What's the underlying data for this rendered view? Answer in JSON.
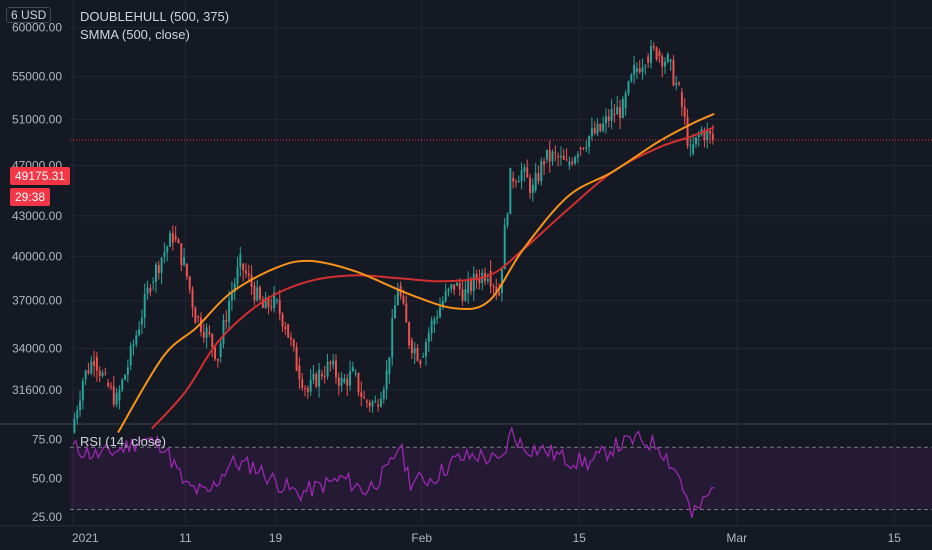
{
  "header": {
    "currency": "6 USD",
    "indicator_1": "DOUBLEHULL (500, 375)",
    "indicator_2": "SMMA (500, close)",
    "rsi_label": "RSI (14, close)"
  },
  "price_badge": {
    "last_price": "49175.31",
    "countdown": "29:38"
  },
  "colors": {
    "background": "#151924",
    "up_candle": "#26a69a",
    "down_candle": "#ef5350",
    "doublehull": "#f7931a",
    "smma": "#d32f2f",
    "rsi": "#9c27b0",
    "price_tag": "#f23645"
  },
  "chart_data": [
    {
      "type": "candlestick",
      "y_axis_ticks": [
        60000,
        55000,
        51000,
        47000,
        43000,
        40000,
        37000,
        34000,
        31600
      ],
      "y_tick_labels": [
        "60000.00",
        "55000.00",
        "51000.00",
        "47000.00",
        "43000.00",
        "40000.00",
        "37000.00",
        "34000.00",
        "31600.00"
      ],
      "x_axis_labels": [
        "2021",
        "11",
        "19",
        "Feb",
        "15",
        "Mar",
        "15"
      ],
      "x_axis_label_days": [
        0,
        10,
        18,
        31,
        45,
        59,
        73
      ],
      "ylim": [
        29800,
        63000
      ],
      "last_price": 49175.31,
      "close_series": [
        {
          "day": 0,
          "close": 29300
        },
        {
          "day": 1,
          "close": 32200
        },
        {
          "day": 2,
          "close": 33500
        },
        {
          "day": 3,
          "close": 32000
        },
        {
          "day": 4,
          "close": 31000
        },
        {
          "day": 5,
          "close": 33000
        },
        {
          "day": 6,
          "close": 35500
        },
        {
          "day": 7,
          "close": 38200
        },
        {
          "day": 8,
          "close": 40000
        },
        {
          "day": 9,
          "close": 41500
        },
        {
          "day": 10,
          "close": 39500
        },
        {
          "day": 11,
          "close": 36000
        },
        {
          "day": 12,
          "close": 35000
        },
        {
          "day": 13,
          "close": 33500
        },
        {
          "day": 14,
          "close": 37000
        },
        {
          "day": 15,
          "close": 39500
        },
        {
          "day": 16,
          "close": 38000
        },
        {
          "day": 17,
          "close": 36500
        },
        {
          "day": 18,
          "close": 37000
        },
        {
          "day": 19,
          "close": 35500
        },
        {
          "day": 20,
          "close": 33000
        },
        {
          "day": 21,
          "close": 31500
        },
        {
          "day": 22,
          "close": 32500
        },
        {
          "day": 23,
          "close": 33000
        },
        {
          "day": 24,
          "close": 32000
        },
        {
          "day": 25,
          "close": 32500
        },
        {
          "day": 26,
          "close": 31000
        },
        {
          "day": 27,
          "close": 30800
        },
        {
          "day": 28,
          "close": 32500
        },
        {
          "day": 29,
          "close": 38000
        },
        {
          "day": 30,
          "close": 34500
        },
        {
          "day": 31,
          "close": 33500
        },
        {
          "day": 32,
          "close": 35500
        },
        {
          "day": 33,
          "close": 37000
        },
        {
          "day": 34,
          "close": 38000
        },
        {
          "day": 35,
          "close": 37500
        },
        {
          "day": 36,
          "close": 38500
        },
        {
          "day": 37,
          "close": 39000
        },
        {
          "day": 38,
          "close": 37500
        },
        {
          "day": 39,
          "close": 46000
        },
        {
          "day": 40,
          "close": 46500
        },
        {
          "day": 41,
          "close": 45000
        },
        {
          "day": 42,
          "close": 47500
        },
        {
          "day": 43,
          "close": 47800
        },
        {
          "day": 44,
          "close": 47000
        },
        {
          "day": 45,
          "close": 48500
        },
        {
          "day": 46,
          "close": 49500
        },
        {
          "day": 47,
          "close": 50000
        },
        {
          "day": 48,
          "close": 51500
        },
        {
          "day": 49,
          "close": 52000
        },
        {
          "day": 50,
          "close": 55500
        },
        {
          "day": 51,
          "close": 57000
        },
        {
          "day": 52,
          "close": 57500
        },
        {
          "day": 53,
          "close": 56500
        },
        {
          "day": 54,
          "close": 53500
        },
        {
          "day": 55,
          "close": 48000
        },
        {
          "day": 56,
          "close": 50000
        },
        {
          "day": 57,
          "close": 49175
        }
      ],
      "doublehull_series": [
        {
          "day": 4,
          "value": 29300
        },
        {
          "day": 8,
          "value": 33500
        },
        {
          "day": 11,
          "value": 35300
        },
        {
          "day": 14,
          "value": 37500
        },
        {
          "day": 18,
          "value": 39200
        },
        {
          "day": 21,
          "value": 39700
        },
        {
          "day": 25,
          "value": 39000
        },
        {
          "day": 30,
          "value": 37400
        },
        {
          "day": 34,
          "value": 36500
        },
        {
          "day": 37,
          "value": 37000
        },
        {
          "day": 40,
          "value": 40500
        },
        {
          "day": 44,
          "value": 44500
        },
        {
          "day": 48,
          "value": 46500
        },
        {
          "day": 52,
          "value": 49000
        },
        {
          "day": 55,
          "value": 50600
        },
        {
          "day": 57,
          "value": 51500
        }
      ],
      "smma_series": [
        {
          "day": 7,
          "value": 29500
        },
        {
          "day": 10,
          "value": 31500
        },
        {
          "day": 13,
          "value": 34500
        },
        {
          "day": 17,
          "value": 37000
        },
        {
          "day": 21,
          "value": 38300
        },
        {
          "day": 25,
          "value": 38700
        },
        {
          "day": 29,
          "value": 38500
        },
        {
          "day": 33,
          "value": 38300
        },
        {
          "day": 37,
          "value": 38700
        },
        {
          "day": 40,
          "value": 40500
        },
        {
          "day": 44,
          "value": 43500
        },
        {
          "day": 48,
          "value": 46500
        },
        {
          "day": 52,
          "value": 48500
        },
        {
          "day": 55,
          "value": 49500
        },
        {
          "day": 57,
          "value": 50300
        }
      ]
    },
    {
      "type": "line",
      "name": "RSI",
      "y_axis_ticks": [
        75,
        50,
        25
      ],
      "y_tick_labels": [
        "75.00",
        "50.00",
        "25.00"
      ],
      "ylim": [
        20,
        85
      ],
      "band": [
        30,
        70
      ],
      "series": [
        {
          "day": 0,
          "value": 70
        },
        {
          "day": 2,
          "value": 65
        },
        {
          "day": 4,
          "value": 68
        },
        {
          "day": 6,
          "value": 75
        },
        {
          "day": 8,
          "value": 72
        },
        {
          "day": 10,
          "value": 45
        },
        {
          "day": 12,
          "value": 40
        },
        {
          "day": 14,
          "value": 60
        },
        {
          "day": 16,
          "value": 58
        },
        {
          "day": 18,
          "value": 48
        },
        {
          "day": 20,
          "value": 40
        },
        {
          "day": 22,
          "value": 45
        },
        {
          "day": 24,
          "value": 50
        },
        {
          "day": 26,
          "value": 42
        },
        {
          "day": 28,
          "value": 55
        },
        {
          "day": 29,
          "value": 72
        },
        {
          "day": 30,
          "value": 48
        },
        {
          "day": 32,
          "value": 50
        },
        {
          "day": 34,
          "value": 62
        },
        {
          "day": 36,
          "value": 65
        },
        {
          "day": 38,
          "value": 60
        },
        {
          "day": 39,
          "value": 80
        },
        {
          "day": 40,
          "value": 70
        },
        {
          "day": 42,
          "value": 68
        },
        {
          "day": 44,
          "value": 62
        },
        {
          "day": 46,
          "value": 60
        },
        {
          "day": 48,
          "value": 70
        },
        {
          "day": 50,
          "value": 75
        },
        {
          "day": 52,
          "value": 72
        },
        {
          "day": 54,
          "value": 50
        },
        {
          "day": 55,
          "value": 25
        },
        {
          "day": 57,
          "value": 44
        }
      ]
    }
  ]
}
